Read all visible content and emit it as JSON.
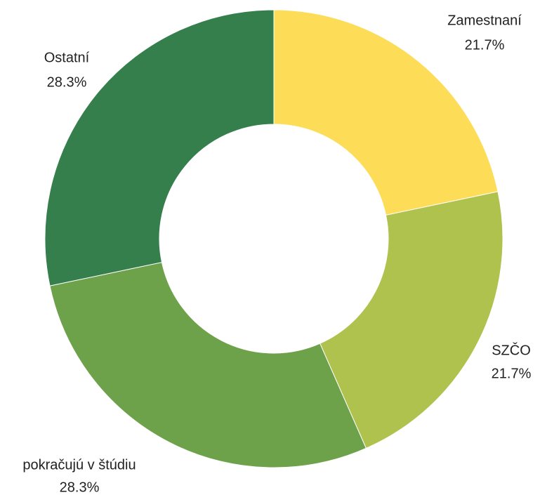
{
  "chart_data": {
    "type": "donut",
    "categories": [
      "Zamestnaní",
      "SZČO",
      "pokračujú v štúdiu",
      "Ostatní"
    ],
    "values": [
      21.7,
      21.7,
      28.3,
      28.3
    ],
    "value_labels": [
      "21.7%",
      "21.7%",
      "28.3%",
      "28.3%"
    ],
    "colors": [
      "#fddc58",
      "#b0c24e",
      "#6da24a",
      "#357f4c"
    ]
  }
}
